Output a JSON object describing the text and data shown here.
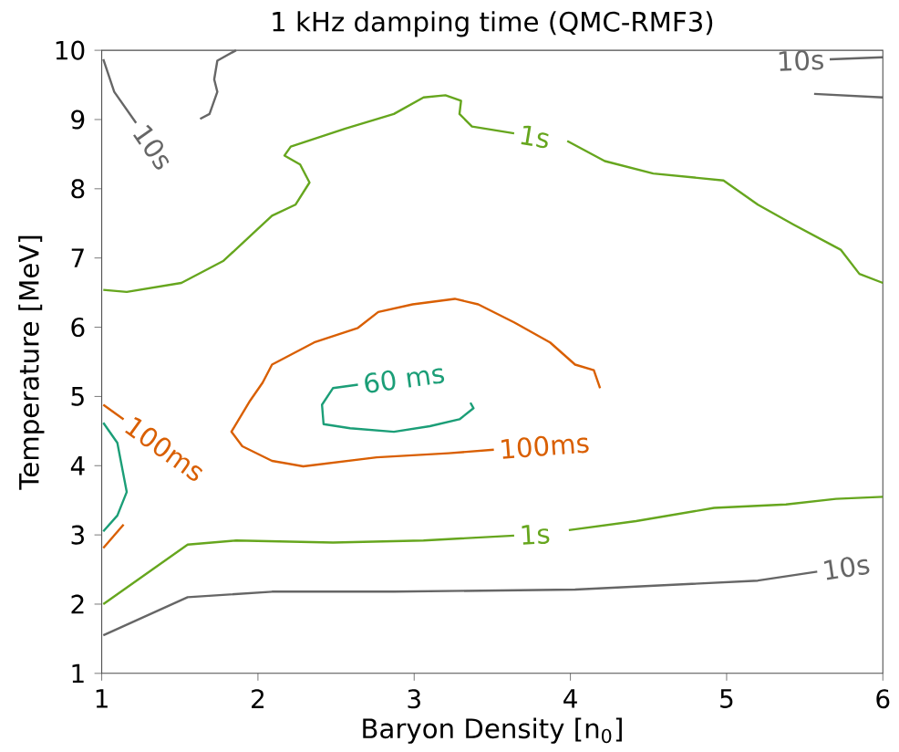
{
  "chart_data": {
    "type": "line",
    "title": "1 kHz damping time (QMC-RMF3)",
    "xlabel": "Baryon Density [n$_{0}$]",
    "ylabel": "Temperature [MeV]",
    "xlim": [
      1,
      6
    ],
    "ylim": [
      1,
      10
    ],
    "xticks": [
      1,
      2,
      3,
      4,
      5,
      6
    ],
    "yticks": [
      1,
      2,
      3,
      4,
      5,
      6,
      7,
      8,
      9,
      10
    ],
    "grid": false,
    "marker": "none",
    "line_style": "solid",
    "series": [
      {
        "name": "10s",
        "color": "#666666",
        "x": [
          1.01,
          1.08,
          1.22
        ],
        "values": [
          9.87,
          9.4,
          8.95
        ]
      },
      {
        "color": "#666666",
        "x": [
          1.63,
          1.69,
          1.74,
          1.72,
          1.74,
          1.86
        ],
        "values": [
          9.01,
          9.08,
          9.4,
          9.58,
          9.85,
          10.0
        ]
      },
      {
        "name": "10s",
        "color": "#666666",
        "x": [
          6.0,
          5.66
        ],
        "values": [
          9.9,
          9.87
        ]
      },
      {
        "color": "#666666",
        "x": [
          5.56,
          6.0
        ],
        "values": [
          9.37,
          9.32
        ]
      },
      {
        "name": "1s",
        "color": "#66a61e",
        "x": [
          1.01,
          1.16,
          1.51,
          1.78,
          1.98,
          2.09,
          2.24,
          2.33,
          2.27,
          2.17,
          2.21,
          2.56,
          2.87,
          3.06,
          3.2,
          3.3,
          3.29,
          3.37,
          3.64
        ],
        "values": [
          6.54,
          6.51,
          6.64,
          6.96,
          7.38,
          7.61,
          7.77,
          8.09,
          8.35,
          8.48,
          8.61,
          8.87,
          9.08,
          9.32,
          9.35,
          9.27,
          9.08,
          8.9,
          8.8
        ]
      },
      {
        "color": "#66a61e",
        "x": [
          3.98,
          4.22,
          4.53,
          4.98,
          5.2,
          5.43,
          5.73,
          5.85,
          6.0
        ],
        "values": [
          8.69,
          8.4,
          8.22,
          8.12,
          7.77,
          7.48,
          7.12,
          6.77,
          6.64
        ]
      },
      {
        "name": "100ms",
        "color": "#d95f02",
        "x": [
          4.19,
          4.15,
          4.03,
          3.87,
          3.64,
          3.41,
          3.26,
          2.99,
          2.77,
          2.64,
          2.36,
          2.09,
          2.03,
          1.95,
          1.83,
          1.9,
          2.09,
          2.29,
          2.76,
          3.22,
          3.51
        ],
        "values": [
          5.12,
          5.38,
          5.46,
          5.78,
          6.07,
          6.33,
          6.41,
          6.33,
          6.22,
          5.99,
          5.78,
          5.46,
          5.2,
          4.94,
          4.49,
          4.28,
          4.07,
          3.99,
          4.12,
          4.18,
          4.23
        ]
      },
      {
        "name": "60 ms",
        "color": "#1b9e77",
        "x": [
          3.36,
          3.38,
          3.29,
          3.1,
          2.87,
          2.59,
          2.42,
          2.41,
          2.48,
          2.64
        ],
        "values": [
          4.91,
          4.83,
          4.67,
          4.57,
          4.49,
          4.54,
          4.6,
          4.88,
          5.12,
          5.17
        ]
      },
      {
        "name": "100ms",
        "color": "#d95f02",
        "x": [
          1.01,
          1.14
        ],
        "values": [
          4.88,
          4.67
        ]
      },
      {
        "color": "#d95f02",
        "x": [
          1.14,
          1.01
        ],
        "values": [
          3.15,
          2.81
        ]
      },
      {
        "color": "#1b9e77",
        "x": [
          1.01,
          1.1,
          1.16,
          1.1,
          1.01
        ],
        "values": [
          4.62,
          4.33,
          3.62,
          3.28,
          3.05
        ]
      },
      {
        "name": "1s",
        "color": "#66a61e",
        "x": [
          1.01,
          1.55,
          1.86,
          2.48,
          3.06,
          3.64
        ],
        "values": [
          2.0,
          2.86,
          2.92,
          2.89,
          2.92,
          2.99
        ]
      },
      {
        "color": "#66a61e",
        "x": [
          3.99,
          4.42,
          4.92,
          5.38,
          5.7,
          6.0
        ],
        "values": [
          3.07,
          3.2,
          3.39,
          3.44,
          3.52,
          3.55
        ]
      },
      {
        "name": "10s",
        "color": "#666666",
        "x": [
          1.01,
          1.55,
          2.09,
          2.87,
          4.03,
          5.2,
          5.58
        ],
        "values": [
          1.55,
          2.1,
          2.18,
          2.18,
          2.21,
          2.34,
          2.47
        ]
      }
    ]
  }
}
